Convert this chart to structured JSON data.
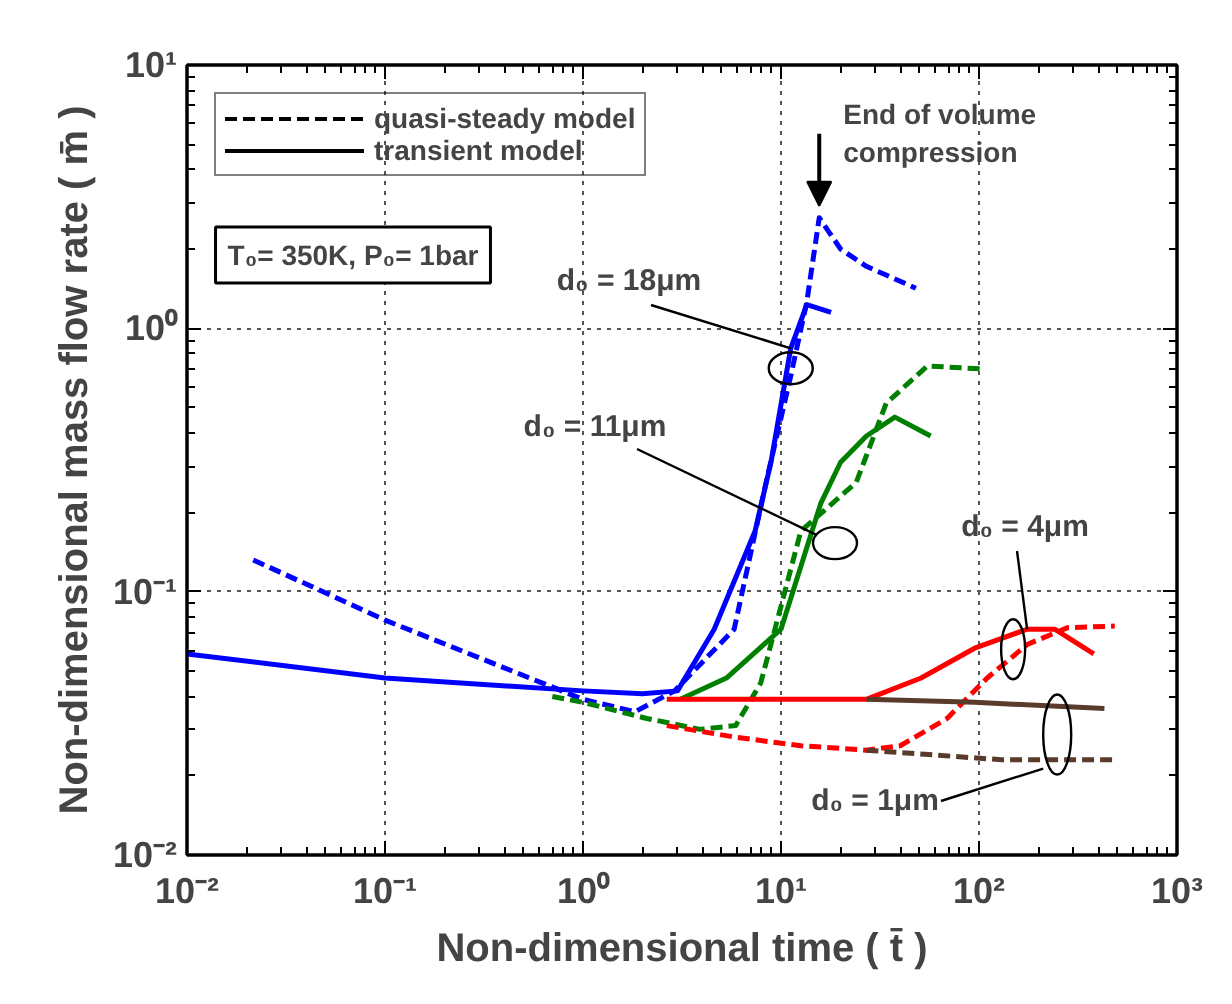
{
  "chart_data": {
    "type": "line",
    "xlabel": "Non-dimensional time ( t̄ )",
    "ylabel": "Non-dimensional mass flow rate ( m̄ )",
    "log": "xy",
    "grid": true,
    "xlim": [
      0.01,
      1000
    ],
    "ylim": [
      0.01,
      10
    ],
    "xticks": [
      {
        "value": 0.01,
        "label": "10⁻²"
      },
      {
        "value": 0.1,
        "label": "10⁻¹"
      },
      {
        "value": 1,
        "label": "10⁰"
      },
      {
        "value": 10,
        "label": "10¹"
      },
      {
        "value": 100,
        "label": "10²"
      },
      {
        "value": 1000,
        "label": "10³"
      }
    ],
    "yticks": [
      {
        "value": 0.01,
        "label": "10⁻²"
      },
      {
        "value": 0.1,
        "label": "10⁻¹"
      },
      {
        "value": 1,
        "label": "10⁰"
      },
      {
        "value": 10,
        "label": "10¹"
      }
    ],
    "series": [
      {
        "color": "#0000ff",
        "line_style": "dashed",
        "x": [
          0.0216,
          0.1,
          1,
          1.83,
          2.9,
          5.8,
          8.5,
          11.2,
          13.5,
          15.6,
          20,
          27,
          48
        ],
        "values": [
          0.132,
          0.078,
          0.039,
          0.035,
          0.042,
          0.072,
          0.27,
          0.66,
          1.26,
          2.63,
          2.0,
          1.72,
          1.42
        ]
      },
      {
        "color": "#0000ff",
        "line_style": "solid",
        "x": [
          0.01,
          0.1,
          1,
          2,
          3,
          4.6,
          7.4,
          8.9,
          11.2,
          13.5,
          17.9
        ],
        "values": [
          0.058,
          0.047,
          0.042,
          0.041,
          0.042,
          0.072,
          0.17,
          0.31,
          0.84,
          1.23,
          1.15
        ]
      },
      {
        "color": "#008000",
        "line_style": "solid",
        "x": [
          3.1,
          5.3,
          10,
          15.9,
          20,
          27,
          37.6,
          57
        ],
        "values": [
          0.039,
          0.047,
          0.072,
          0.217,
          0.31,
          0.39,
          0.46,
          0.39
        ]
      },
      {
        "color": "#008000",
        "line_style": "dashed",
        "x": [
          0.7,
          1,
          2.1,
          3.9,
          5.9,
          7.9,
          12.6,
          24,
          34,
          55,
          107
        ],
        "values": [
          0.04,
          0.038,
          0.033,
          0.03,
          0.031,
          0.045,
          0.17,
          0.26,
          0.52,
          0.72,
          0.7
        ]
      },
      {
        "color": "#ff0000",
        "line_style": "solid",
        "x": [
          2.65,
          12.6,
          27,
          51,
          95,
          175,
          241,
          380
        ],
        "values": [
          0.039,
          0.039,
          0.039,
          0.047,
          0.061,
          0.072,
          0.072,
          0.058
        ]
      },
      {
        "color": "#ff0000",
        "line_style": "dashed",
        "x": [
          2.65,
          5.9,
          12.6,
          27,
          40,
          69,
          110,
          175,
          280,
          485
        ],
        "values": [
          0.031,
          0.028,
          0.026,
          0.025,
          0.026,
          0.033,
          0.047,
          0.063,
          0.073,
          0.074
        ]
      },
      {
        "color": "#5a3a2a",
        "line_style": "solid",
        "x": [
          27,
          95,
          430
        ],
        "values": [
          0.039,
          0.038,
          0.036
        ]
      },
      {
        "color": "#5a3a2a",
        "line_style": "dashed",
        "x": [
          27,
          130,
          500
        ],
        "values": [
          0.025,
          0.023,
          0.023
        ]
      }
    ],
    "annotations": [
      "quasi-steady model",
      "transient model",
      "T₀= 350K, P₀= 1bar",
      {
        "text": "d₀ = 18μm",
        "x": 11.2,
        "y": 0.84
      },
      {
        "text": "d₀ = 11μm",
        "x": 15.2,
        "y": 0.164
      },
      {
        "text": "d₀ = 4μm",
        "x": 175,
        "y": 0.072
      },
      {
        "text": "d₀ = 1μm",
        "x": 211,
        "y": 0.0213
      },
      {
        "text": "End of volume\ncompression",
        "x": 15.6,
        "y": 2.63
      }
    ]
  }
}
